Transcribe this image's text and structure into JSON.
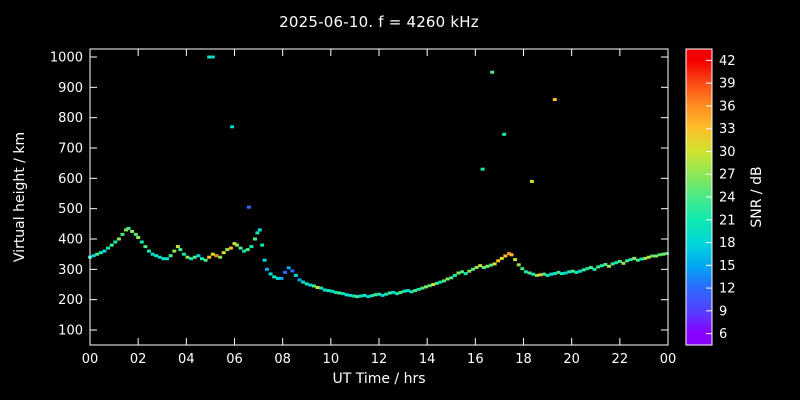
{
  "title": "2025-06-10. f = 4260 kHz",
  "chart_data": {
    "type": "scatter",
    "title": "2025-06-10. f = 4260 kHz",
    "xlabel": "UT Time / hrs",
    "ylabel": "Virtual height / km",
    "colorbar_label": "SNR / dB",
    "xlim": [
      0,
      24
    ],
    "ylim": [
      100,
      1000
    ],
    "grid": false,
    "x_tick_values": [
      0,
      2,
      4,
      6,
      8,
      10,
      12,
      14,
      16,
      18,
      20,
      22,
      24
    ],
    "x_tick_labels": [
      "00",
      "02",
      "04",
      "06",
      "08",
      "10",
      "12",
      "14",
      "16",
      "18",
      "20",
      "22",
      "00"
    ],
    "y_ticks": [
      100,
      200,
      300,
      400,
      500,
      600,
      700,
      800,
      900,
      1000
    ],
    "snr_ticks": [
      6,
      9,
      12,
      15,
      18,
      21,
      24,
      27,
      30,
      33,
      36,
      39,
      42
    ],
    "snr_range": [
      4.5,
      43.5
    ],
    "colormap": [
      {
        "v": 6,
        "c": "#8800ff"
      },
      {
        "v": 9,
        "c": "#5540ff"
      },
      {
        "v": 12,
        "c": "#2b6bff"
      },
      {
        "v": 15,
        "c": "#00a8f0"
      },
      {
        "v": 18,
        "c": "#00d8d8"
      },
      {
        "v": 21,
        "c": "#10e8b0"
      },
      {
        "v": 24,
        "c": "#48e988"
      },
      {
        "v": 27,
        "c": "#8ee656"
      },
      {
        "v": 30,
        "c": "#cfe32e"
      },
      {
        "v": 33,
        "c": "#fdc029"
      },
      {
        "v": 36,
        "c": "#fd8d20"
      },
      {
        "v": 39,
        "c": "#fb4b15"
      },
      {
        "v": 42,
        "c": "#f40000"
      }
    ],
    "points": [
      [
        0.0,
        340,
        21
      ],
      [
        0.15,
        345,
        18
      ],
      [
        0.3,
        350,
        24
      ],
      [
        0.45,
        355,
        21
      ],
      [
        0.6,
        360,
        18
      ],
      [
        0.75,
        370,
        21
      ],
      [
        0.9,
        380,
        24
      ],
      [
        1.05,
        390,
        21
      ],
      [
        1.2,
        400,
        27
      ],
      [
        1.35,
        415,
        24
      ],
      [
        1.5,
        430,
        27
      ],
      [
        1.6,
        435,
        24
      ],
      [
        1.75,
        425,
        27
      ],
      [
        1.9,
        415,
        24
      ],
      [
        2.0,
        405,
        27
      ],
      [
        2.15,
        390,
        21
      ],
      [
        2.3,
        375,
        24
      ],
      [
        2.45,
        360,
        21
      ],
      [
        2.6,
        350,
        18
      ],
      [
        2.75,
        345,
        21
      ],
      [
        2.9,
        340,
        18
      ],
      [
        3.05,
        335,
        21
      ],
      [
        3.2,
        335,
        18
      ],
      [
        3.35,
        345,
        24
      ],
      [
        3.5,
        360,
        27
      ],
      [
        3.65,
        375,
        30
      ],
      [
        3.75,
        365,
        24
      ],
      [
        3.9,
        350,
        21
      ],
      [
        4.05,
        340,
        27
      ],
      [
        4.2,
        335,
        21
      ],
      [
        4.35,
        340,
        24
      ],
      [
        4.5,
        345,
        18
      ],
      [
        4.65,
        335,
        21
      ],
      [
        4.8,
        330,
        24
      ],
      [
        4.95,
        340,
        33
      ],
      [
        4.95,
        1000,
        21
      ],
      [
        5.1,
        1000,
        18
      ],
      [
        5.1,
        350,
        30
      ],
      [
        5.25,
        345,
        36
      ],
      [
        5.4,
        340,
        27
      ],
      [
        5.55,
        355,
        30
      ],
      [
        5.7,
        365,
        27
      ],
      [
        5.85,
        370,
        33
      ],
      [
        5.9,
        770,
        18
      ],
      [
        6.0,
        385,
        30
      ],
      [
        6.1,
        380,
        27
      ],
      [
        6.25,
        370,
        24
      ],
      [
        6.4,
        360,
        21
      ],
      [
        6.55,
        365,
        24
      ],
      [
        6.6,
        505,
        12
      ],
      [
        6.7,
        375,
        21
      ],
      [
        6.85,
        400,
        24
      ],
      [
        6.95,
        420,
        21
      ],
      [
        7.05,
        430,
        18
      ],
      [
        7.15,
        380,
        21
      ],
      [
        7.25,
        330,
        18
      ],
      [
        7.35,
        300,
        15
      ],
      [
        7.5,
        285,
        18
      ],
      [
        7.65,
        275,
        21
      ],
      [
        7.8,
        270,
        18
      ],
      [
        7.95,
        270,
        15
      ],
      [
        8.1,
        290,
        12
      ],
      [
        8.25,
        305,
        15
      ],
      [
        8.4,
        295,
        12
      ],
      [
        8.55,
        280,
        18
      ],
      [
        8.7,
        265,
        15
      ],
      [
        8.85,
        258,
        18
      ],
      [
        9.0,
        252,
        21
      ],
      [
        9.15,
        248,
        18
      ],
      [
        9.3,
        245,
        24
      ],
      [
        9.45,
        240,
        30
      ],
      [
        9.6,
        238,
        21
      ],
      [
        9.75,
        232,
        18
      ],
      [
        9.9,
        230,
        21
      ],
      [
        10.05,
        228,
        18
      ],
      [
        10.2,
        224,
        21
      ],
      [
        10.35,
        222,
        24
      ],
      [
        10.5,
        220,
        18
      ],
      [
        10.65,
        216,
        21
      ],
      [
        10.8,
        214,
        18
      ],
      [
        10.95,
        212,
        21
      ],
      [
        11.1,
        210,
        24
      ],
      [
        11.25,
        212,
        18
      ],
      [
        11.4,
        214,
        21
      ],
      [
        11.55,
        210,
        18
      ],
      [
        11.7,
        213,
        21
      ],
      [
        11.85,
        216,
        24
      ],
      [
        12.0,
        218,
        21
      ],
      [
        12.15,
        214,
        18
      ],
      [
        12.3,
        218,
        21
      ],
      [
        12.45,
        222,
        24
      ],
      [
        12.6,
        224,
        18
      ],
      [
        12.75,
        220,
        21
      ],
      [
        12.9,
        224,
        24
      ],
      [
        13.05,
        228,
        21
      ],
      [
        13.2,
        230,
        18
      ],
      [
        13.35,
        226,
        21
      ],
      [
        13.5,
        230,
        24
      ],
      [
        13.65,
        234,
        21
      ],
      [
        13.8,
        238,
        24
      ],
      [
        13.95,
        242,
        27
      ],
      [
        14.1,
        246,
        24
      ],
      [
        14.25,
        250,
        30
      ],
      [
        14.4,
        254,
        24
      ],
      [
        14.55,
        258,
        21
      ],
      [
        14.7,
        262,
        24
      ],
      [
        14.85,
        268,
        27
      ],
      [
        15.0,
        272,
        24
      ],
      [
        15.15,
        280,
        21
      ],
      [
        15.3,
        288,
        27
      ],
      [
        15.45,
        292,
        24
      ],
      [
        15.6,
        286,
        21
      ],
      [
        15.75,
        294,
        27
      ],
      [
        15.9,
        300,
        24
      ],
      [
        16.05,
        306,
        27
      ],
      [
        16.2,
        312,
        30
      ],
      [
        16.3,
        630,
        21
      ],
      [
        16.35,
        306,
        24
      ],
      [
        16.5,
        310,
        27
      ],
      [
        16.65,
        314,
        24
      ],
      [
        16.7,
        950,
        24
      ],
      [
        16.8,
        318,
        30
      ],
      [
        16.95,
        328,
        33
      ],
      [
        17.1,
        336,
        30
      ],
      [
        17.2,
        745,
        21
      ],
      [
        17.25,
        344,
        33
      ],
      [
        17.4,
        352,
        36
      ],
      [
        17.5,
        348,
        33
      ],
      [
        17.65,
        332,
        30
      ],
      [
        17.8,
        315,
        27
      ],
      [
        17.95,
        302,
        24
      ],
      [
        18.1,
        292,
        21
      ],
      [
        18.25,
        288,
        24
      ],
      [
        18.35,
        590,
        30
      ],
      [
        18.4,
        284,
        21
      ],
      [
        18.55,
        280,
        27
      ],
      [
        18.7,
        282,
        33
      ],
      [
        18.85,
        284,
        24
      ],
      [
        19.0,
        280,
        21
      ],
      [
        19.15,
        284,
        18
      ],
      [
        19.3,
        286,
        21
      ],
      [
        19.3,
        860,
        33
      ],
      [
        19.45,
        290,
        24
      ],
      [
        19.6,
        286,
        21
      ],
      [
        19.75,
        288,
        18
      ],
      [
        19.9,
        292,
        21
      ],
      [
        20.05,
        294,
        24
      ],
      [
        20.2,
        290,
        21
      ],
      [
        20.35,
        294,
        18
      ],
      [
        20.5,
        298,
        24
      ],
      [
        20.65,
        302,
        21
      ],
      [
        20.8,
        306,
        24
      ],
      [
        20.95,
        300,
        21
      ],
      [
        21.1,
        308,
        24
      ],
      [
        21.25,
        312,
        21
      ],
      [
        21.4,
        316,
        24
      ],
      [
        21.55,
        310,
        27
      ],
      [
        21.7,
        318,
        24
      ],
      [
        21.85,
        322,
        21
      ],
      [
        22.0,
        326,
        24
      ],
      [
        22.15,
        320,
        27
      ],
      [
        22.3,
        328,
        24
      ],
      [
        22.45,
        332,
        21
      ],
      [
        22.6,
        336,
        27
      ],
      [
        22.75,
        330,
        24
      ],
      [
        22.9,
        334,
        21
      ],
      [
        23.05,
        336,
        27
      ],
      [
        23.2,
        340,
        30
      ],
      [
        23.35,
        344,
        24
      ],
      [
        23.5,
        344,
        27
      ],
      [
        23.65,
        348,
        24
      ],
      [
        23.8,
        350,
        27
      ],
      [
        23.95,
        352,
        24
      ]
    ]
  }
}
